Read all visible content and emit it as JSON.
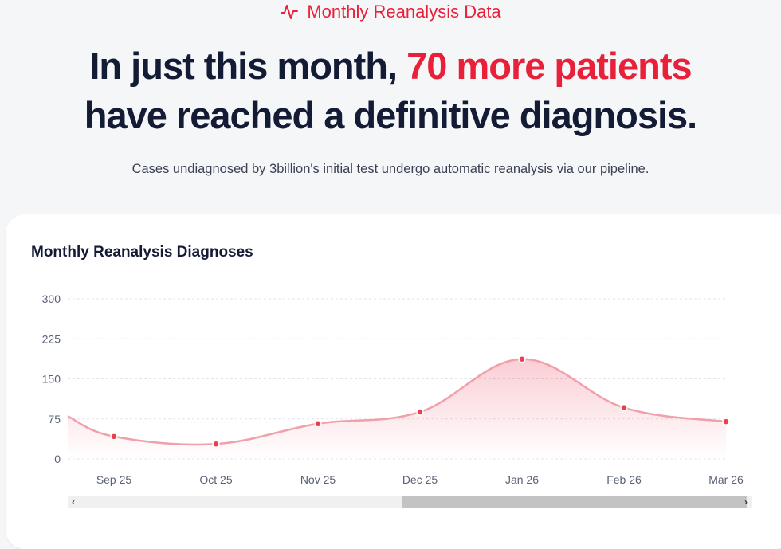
{
  "header": {
    "eyebrow": "Monthly Reanalysis Data",
    "eyebrow_icon": "pulse-icon",
    "headline_part1": "In just this month,",
    "headline_highlight": "70 more patients",
    "headline_part2": "have reached a definitive diagnosis.",
    "subtitle": "Cases undiagnosed by 3billion's initial test undergo automatic reanalysis via our pipeline."
  },
  "colors": {
    "accent": "#e8203a",
    "line": "#f0a0a8",
    "point": "#e8404c",
    "text_dark": "#131b35"
  },
  "chart_title": "Monthly Reanalysis Diagnoses",
  "chart_data": {
    "type": "area",
    "title": "Monthly Reanalysis Diagnoses",
    "categories": [
      "Sep 25",
      "Oct 25",
      "Nov 25",
      "Dec 25",
      "Jan 26",
      "Feb 26",
      "Mar 26"
    ],
    "values": [
      42,
      28,
      66,
      88,
      187,
      96,
      70
    ],
    "leading_value": 80,
    "yticks": [
      0,
      75,
      150,
      225,
      300
    ],
    "ylim": [
      0,
      300
    ],
    "grid": true,
    "legend": "none",
    "curve": "smooth"
  },
  "scrollbar": {
    "left_arrow": "‹",
    "right_arrow": "›"
  }
}
